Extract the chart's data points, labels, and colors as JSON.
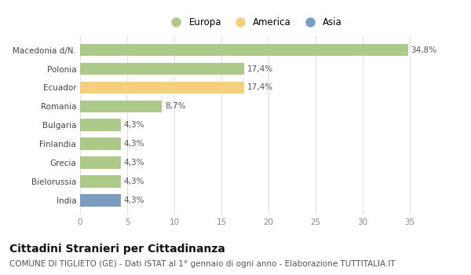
{
  "categories": [
    "Macedonia d/N.",
    "Polonia",
    "Ecuador",
    "Romania",
    "Bulgaria",
    "Finlandia",
    "Grecia",
    "Bielorussia",
    "India"
  ],
  "values": [
    34.8,
    17.4,
    17.4,
    8.7,
    4.3,
    4.3,
    4.3,
    4.3,
    4.3
  ],
  "labels": [
    "34,8%",
    "17,4%",
    "17,4%",
    "8,7%",
    "4,3%",
    "4,3%",
    "4,3%",
    "4,3%",
    "4,3%"
  ],
  "colors": [
    "#adc98a",
    "#adc98a",
    "#f5d07a",
    "#adc98a",
    "#adc98a",
    "#adc98a",
    "#adc98a",
    "#adc98a",
    "#7b9ec0"
  ],
  "legend": [
    {
      "label": "Europa",
      "color": "#adc98a"
    },
    {
      "label": "America",
      "color": "#f5d07a"
    },
    {
      "label": "Asia",
      "color": "#7b9ec0"
    }
  ],
  "xlim": [
    0,
    37
  ],
  "xticks": [
    0,
    5,
    10,
    15,
    20,
    25,
    30,
    35
  ],
  "title": "Cittadini Stranieri per Cittadinanza",
  "subtitle": "COMUNE DI TIGLIETO (GE) - Dati ISTAT al 1° gennaio di ogni anno - Elaborazione TUTTITALIA.IT",
  "background_color": "#ffffff",
  "bar_height": 0.65,
  "title_fontsize": 10,
  "subtitle_fontsize": 7.5,
  "label_fontsize": 7.5,
  "tick_fontsize": 7.5,
  "legend_fontsize": 8.5
}
